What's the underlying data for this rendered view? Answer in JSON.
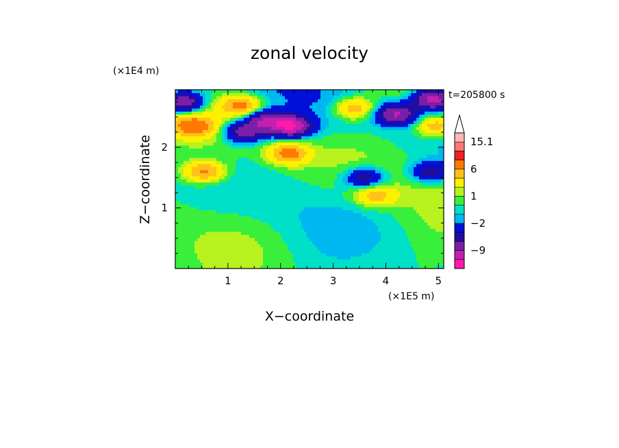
{
  "chart_data": {
    "type": "heatmap",
    "title": "zonal velocity",
    "xlabel": "X−coordinate",
    "ylabel": "Z−coordinate",
    "x_unit": "(×1E5 m)",
    "y_unit": "(×1E4 m)",
    "time_label": "t=205800 s",
    "xlim": [
      0,
      5.1
    ],
    "ylim": [
      0,
      2.95
    ],
    "x_ticks": [
      "1",
      "2",
      "3",
      "4",
      "5"
    ],
    "y_ticks": [
      "1",
      "2"
    ],
    "colorbar": {
      "labels": [
        "15.1",
        "6",
        "1",
        "−2",
        "−9"
      ],
      "label_values": [
        15.1,
        6,
        1,
        -2,
        -9
      ],
      "levels": [
        -15,
        -12,
        -9,
        -6,
        -4,
        -2,
        -1,
        0,
        1,
        2,
        4,
        6,
        9,
        12,
        15.1
      ],
      "colors": [
        "#ff1aae",
        "#c41fb0",
        "#7b1ea8",
        "#1f0ea0",
        "#0010d8",
        "#00b8f0",
        "#00e0c8",
        "#39ef3c",
        "#b8f21f",
        "#fff000",
        "#ffc21a",
        "#ff7a00",
        "#ee2020",
        "#ff7777",
        "#ffb8b8"
      ],
      "extend": "max"
    },
    "field_features": [
      {
        "x": 2.2,
        "z": 2.35,
        "value": -12
      },
      {
        "x": 1.3,
        "z": 2.25,
        "value": -8
      },
      {
        "x": 1.7,
        "z": 2.45,
        "value": -8
      },
      {
        "x": 4.2,
        "z": 2.55,
        "value": -9
      },
      {
        "x": 0.15,
        "z": 2.75,
        "value": -10
      },
      {
        "x": 4.9,
        "z": 2.8,
        "value": -11
      },
      {
        "x": 0.35,
        "z": 2.35,
        "value": 7
      },
      {
        "x": 2.15,
        "z": 1.9,
        "value": 7
      },
      {
        "x": 1.25,
        "z": 2.7,
        "value": 7
      },
      {
        "x": 3.4,
        "z": 2.65,
        "value": 6
      },
      {
        "x": 0.55,
        "z": 1.6,
        "value": 7
      },
      {
        "x": 3.8,
        "z": 1.2,
        "value": 5
      },
      {
        "x": 4.95,
        "z": 2.35,
        "value": 6
      },
      {
        "x": 3.6,
        "z": 1.5,
        "value": -6
      },
      {
        "x": 4.85,
        "z": 1.6,
        "value": -6
      }
    ]
  }
}
